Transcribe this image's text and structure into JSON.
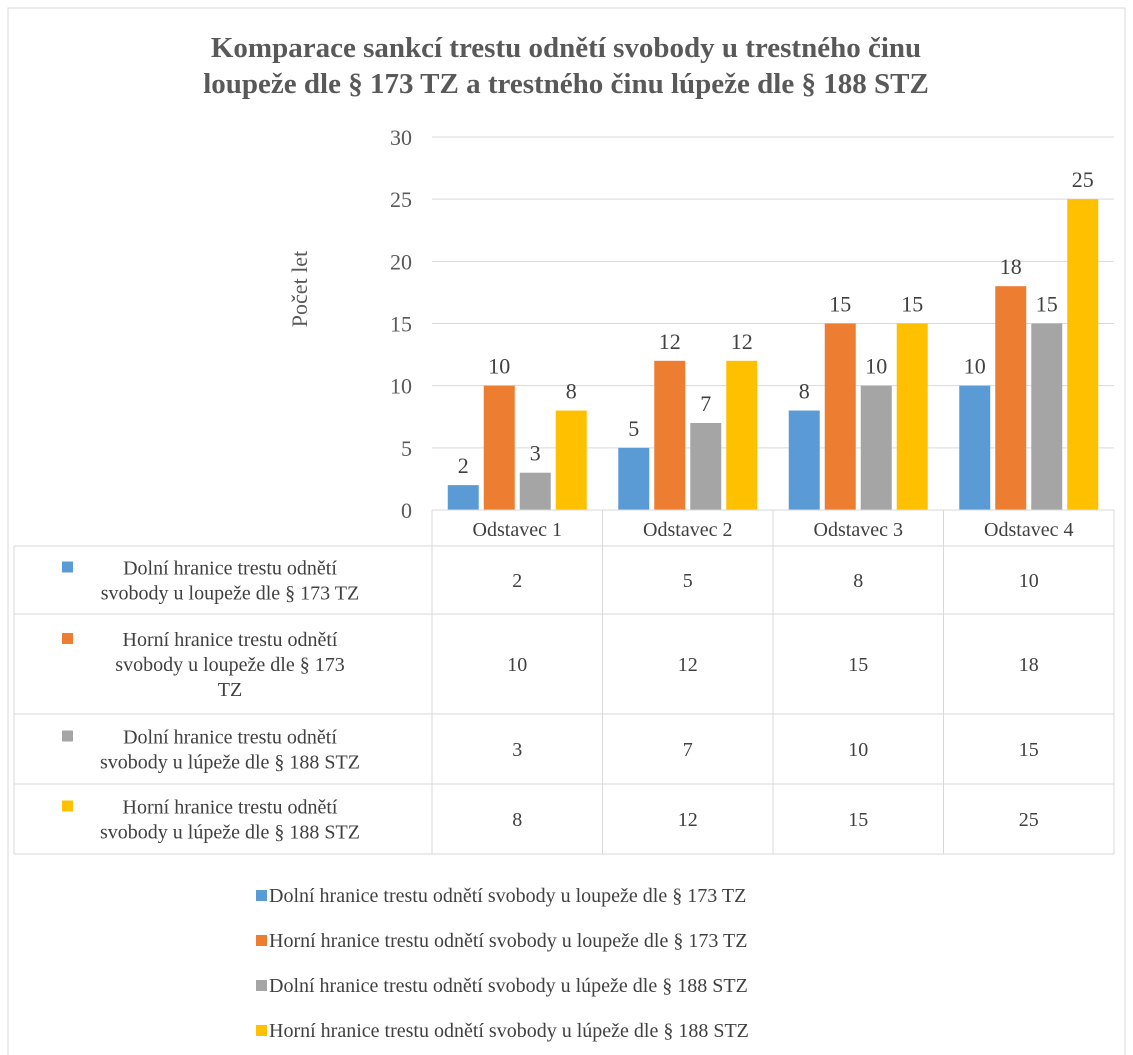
{
  "chart_data": {
    "type": "bar",
    "title_lines": [
      "Komparace sankcí trestu odnětí svobody u trestného činu",
      "loupeže dle § 173 TZ a trestného činu lúpeže dle § 188 STZ"
    ],
    "ylabel": "Počet let",
    "xlabel": "",
    "ylim": [
      0,
      30
    ],
    "yticks": [
      0,
      5,
      10,
      15,
      20,
      25,
      30
    ],
    "grid": true,
    "legend_position": "bottom",
    "data_table": true,
    "categories": [
      "Odstavec 1",
      "Odstavec 2",
      "Odstavec 3",
      "Odstavec 4"
    ],
    "series": [
      {
        "name": "Dolní hranice trestu odnětí svobody u loupeže dle § 173 TZ",
        "table_label_lines": [
          "Dolní hranice trestu odnětí",
          "svobody u loupeže dle § 173 TZ"
        ],
        "color": "#5B9BD5",
        "values": [
          2,
          5,
          8,
          10
        ]
      },
      {
        "name": "Horní hranice trestu odnětí svobody u  loupeže dle § 173 TZ",
        "table_label_lines": [
          "Horní hranice trestu odnětí",
          "svobody u  loupeže dle § 173",
          "TZ"
        ],
        "color": "#ED7D31",
        "values": [
          10,
          12,
          15,
          18
        ]
      },
      {
        "name": "Dolní hranice trestu odnětí svobody u lúpeže dle § 188 STZ",
        "table_label_lines": [
          "Dolní hranice trestu odnětí",
          "svobody u lúpeže dle § 188 STZ"
        ],
        "color": "#A5A5A5",
        "values": [
          3,
          7,
          10,
          15
        ]
      },
      {
        "name": "Horní hranice trestu odnětí svobody u lúpeže dle § 188 STZ",
        "table_label_lines": [
          "Horní hranice trestu odnětí",
          "svobody u lúpeže dle § 188 STZ"
        ],
        "color": "#FFC000",
        "values": [
          8,
          12,
          15,
          25
        ]
      }
    ]
  }
}
